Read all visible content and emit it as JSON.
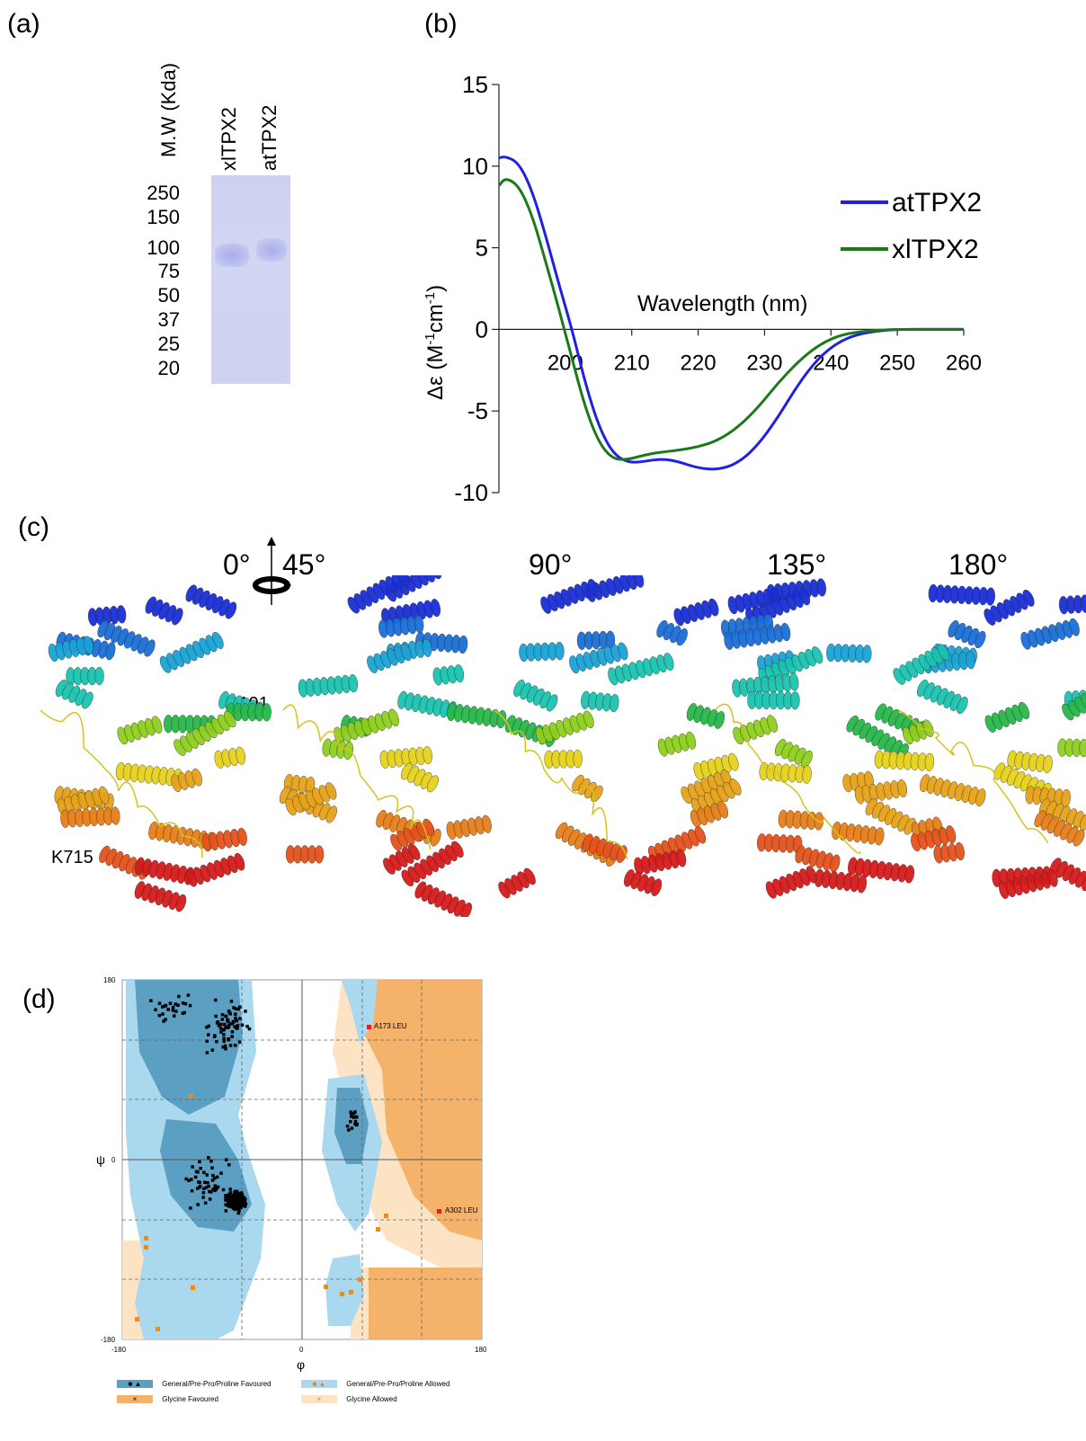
{
  "panels": {
    "a": {
      "label": "(a)",
      "mw_header": "M.W (Kda)",
      "lanes": [
        "xlTPX2",
        "atTPX2"
      ],
      "markers": [
        "250",
        "150",
        "100",
        "75",
        "50",
        "37",
        "25",
        "20"
      ],
      "gel_color": "#cfd3f0",
      "band_color": "#aab0e8"
    },
    "b": {
      "label": "(b)",
      "ylabel_prefix": "Δε (M",
      "ylabel_sup1": "-1",
      "ylabel_mid": "cm",
      "ylabel_sup2": "-1",
      "ylabel_suffix": ")",
      "xlabel": "Wavelength (nm)"
    },
    "c": {
      "label": "(c)",
      "angles": [
        "0°",
        "45°",
        "90°",
        "135°",
        "180°"
      ],
      "residues": [
        "Q191",
        "K715"
      ]
    },
    "d": {
      "label": "(d)",
      "x_axis_symbol": "φ",
      "y_axis_symbol": "ψ",
      "tick_min": "-180",
      "tick_zero": "0",
      "tick_max": "180",
      "outliers": [
        "A173 LEU",
        "A302 LEU"
      ],
      "legend": [
        "General/Pre-Pro/Proline Favoured",
        "General/Pre-Pro/Proline Allowed",
        "Glycine Favoured",
        "Glycine Allowed"
      ],
      "colors": {
        "general_favoured": "#5b9fc2",
        "general_allowed": "#a9d8ef",
        "glycine_favoured": "#f4b26a",
        "glycine_allowed": "#fbe3c4"
      }
    }
  },
  "chart_data": {
    "type": "line",
    "title": "",
    "xlabel": "Wavelength (nm)",
    "ylabel": "Δε (M-1cm-1)",
    "xlim": [
      190,
      260
    ],
    "ylim": [
      -10,
      15
    ],
    "xticks": [
      200,
      210,
      220,
      230,
      240,
      250,
      260
    ],
    "yticks": [
      15,
      10,
      5,
      0,
      -5,
      -10
    ],
    "legend_position": "right",
    "series": [
      {
        "name": "atTPX2",
        "color": "#1f1fe6",
        "x": [
          190,
          191,
          193,
          195,
          197,
          199,
          201,
          203,
          205,
          207,
          209,
          211,
          213,
          215,
          217,
          220,
          223,
          226,
          229,
          232,
          235,
          238,
          241,
          244,
          247,
          250,
          255,
          260
        ],
        "y": [
          10.5,
          10.6,
          10.2,
          8.5,
          5.8,
          2.8,
          0.0,
          -3.3,
          -5.9,
          -7.5,
          -8.1,
          -8.15,
          -8.0,
          -7.95,
          -8.1,
          -8.5,
          -8.6,
          -8.2,
          -7.1,
          -5.4,
          -3.4,
          -1.8,
          -0.8,
          -0.3,
          -0.1,
          0.0,
          0.0,
          0.0
        ]
      },
      {
        "name": "xlTPX2",
        "color": "#1a7a1a",
        "x": [
          190,
          191,
          193,
          195,
          197,
          199,
          201,
          203,
          205,
          207,
          209,
          211,
          213,
          215,
          217,
          220,
          223,
          226,
          229,
          232,
          235,
          238,
          241,
          244,
          247,
          250,
          255,
          260
        ],
        "y": [
          8.8,
          9.3,
          8.8,
          7.0,
          4.2,
          1.3,
          -1.8,
          -4.8,
          -6.9,
          -7.9,
          -8.0,
          -7.8,
          -7.6,
          -7.5,
          -7.4,
          -7.2,
          -6.8,
          -6.0,
          -4.8,
          -3.3,
          -2.0,
          -1.0,
          -0.4,
          -0.15,
          -0.05,
          0.0,
          0.0,
          0.0
        ]
      }
    ]
  }
}
